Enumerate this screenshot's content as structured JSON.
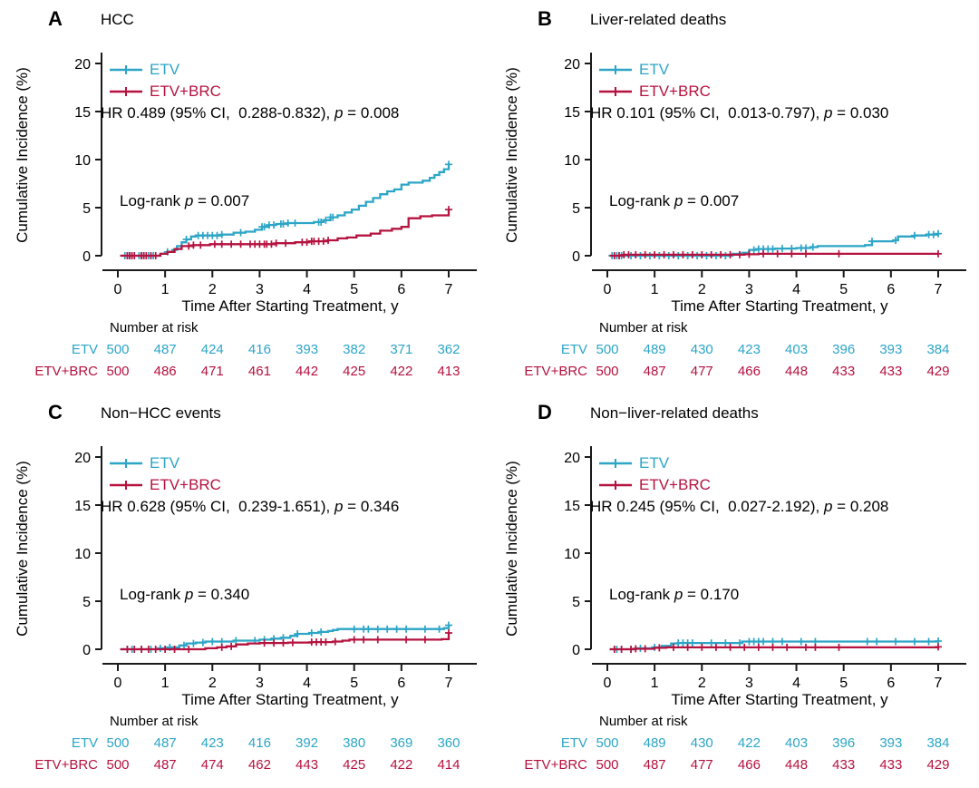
{
  "figure": {
    "x_label": "Time After Starting Treatment, y",
    "y_label": "Cumulative Incidence (%)",
    "risk_header": "Number at risk",
    "p_label": "p",
    "colors": {
      "etv": "#2CA5C6",
      "brc": "#B5123F",
      "axis": "#1A1A1A"
    }
  },
  "chart_data": [
    {
      "type": "line",
      "letter": "A",
      "title": "HCC",
      "hr_prefix": "HR 0.489 (95% CI,  0.288-0.832), ",
      "hr_suffix": " = 0.008",
      "logrank_prefix": "Log-rank ",
      "logrank_suffix": " = 0.007",
      "xlabel": "Time After Starting Treatment, y",
      "ylabel": "Cumulative Incidence (%)",
      "x_ticks": [
        0,
        1,
        2,
        3,
        4,
        5,
        6,
        7
      ],
      "y_ticks": [
        0,
        5,
        10,
        15,
        20
      ],
      "xlim": [
        0,
        7
      ],
      "ylim": [
        0,
        20
      ],
      "series": [
        {
          "name": "ETV",
          "color": "etv",
          "points": [
            [
              0.05,
              0
            ],
            [
              0.9,
              0.2
            ],
            [
              1.05,
              0.4
            ],
            [
              1.15,
              0.6
            ],
            [
              1.25,
              1.0
            ],
            [
              1.35,
              1.4
            ],
            [
              1.45,
              1.7
            ],
            [
              1.55,
              2.0
            ],
            [
              1.65,
              2.1
            ],
            [
              2.2,
              2.2
            ],
            [
              2.45,
              2.4
            ],
            [
              2.7,
              2.5
            ],
            [
              2.9,
              2.7
            ],
            [
              3.05,
              3.0
            ],
            [
              3.2,
              3.2
            ],
            [
              3.35,
              3.3
            ],
            [
              3.6,
              3.4
            ],
            [
              4.15,
              3.5
            ],
            [
              4.35,
              3.7
            ],
            [
              4.5,
              4.0
            ],
            [
              4.65,
              4.2
            ],
            [
              4.8,
              4.5
            ],
            [
              4.95,
              4.8
            ],
            [
              5.1,
              5.2
            ],
            [
              5.25,
              5.6
            ],
            [
              5.4,
              6.0
            ],
            [
              5.55,
              6.4
            ],
            [
              5.7,
              6.7
            ],
            [
              5.85,
              6.9
            ],
            [
              6.0,
              7.4
            ],
            [
              6.15,
              7.6
            ],
            [
              6.45,
              7.8
            ],
            [
              6.6,
              8.1
            ],
            [
              6.7,
              8.4
            ],
            [
              6.8,
              8.7
            ],
            [
              6.9,
              9.0
            ],
            [
              7.0,
              9.5
            ]
          ],
          "censors": [
            0.15,
            0.2,
            0.25,
            0.3,
            0.45,
            0.5,
            0.55,
            0.65,
            0.75,
            1.05,
            1.45,
            1.7,
            1.8,
            1.9,
            2.0,
            2.1,
            2.2,
            2.6,
            3.05,
            3.1,
            3.2,
            3.3,
            3.45,
            3.5,
            3.6,
            3.75,
            4.25,
            4.3,
            4.4,
            4.5,
            4.55,
            7.0
          ]
        },
        {
          "name": "ETV+BRC",
          "color": "brc",
          "points": [
            [
              0.05,
              0
            ],
            [
              0.9,
              0.2
            ],
            [
              1.05,
              0.4
            ],
            [
              1.2,
              0.7
            ],
            [
              1.35,
              1.0
            ],
            [
              1.6,
              1.1
            ],
            [
              1.95,
              1.2
            ],
            [
              3.35,
              1.3
            ],
            [
              3.75,
              1.4
            ],
            [
              4.05,
              1.5
            ],
            [
              4.45,
              1.6
            ],
            [
              4.65,
              1.8
            ],
            [
              4.85,
              1.9
            ],
            [
              5.05,
              2.1
            ],
            [
              5.35,
              2.3
            ],
            [
              5.55,
              2.6
            ],
            [
              5.8,
              2.8
            ],
            [
              6.0,
              3.0
            ],
            [
              6.15,
              3.9
            ],
            [
              6.4,
              4.1
            ],
            [
              6.65,
              4.2
            ],
            [
              7.0,
              4.8
            ]
          ],
          "censors": [
            0.2,
            0.25,
            0.3,
            0.35,
            0.5,
            0.55,
            0.6,
            0.7,
            0.8,
            1.5,
            1.6,
            1.75,
            2.05,
            2.2,
            2.4,
            2.6,
            2.8,
            2.9,
            3.0,
            3.1,
            3.15,
            3.25,
            3.35,
            3.55,
            3.9,
            4.0,
            4.1,
            4.15,
            4.25,
            4.35,
            4.45,
            7.0
          ]
        }
      ],
      "risk": [
        {
          "label": "ETV",
          "color": "etv",
          "values": [
            500,
            487,
            424,
            416,
            393,
            382,
            371,
            362
          ]
        },
        {
          "label": "ETV+BRC",
          "color": "brc",
          "values": [
            500,
            486,
            471,
            461,
            442,
            425,
            422,
            413
          ]
        }
      ]
    },
    {
      "type": "line",
      "letter": "B",
      "title": "Liver-related deaths",
      "hr_prefix": "HR 0.101 (95% CI,  0.013-0.797), ",
      "hr_suffix": " = 0.030",
      "logrank_prefix": "Log-rank ",
      "logrank_suffix": " = 0.007",
      "xlabel": "Time After Starting Treatment, y",
      "ylabel": "Cumulative Incidence (%)",
      "x_ticks": [
        0,
        1,
        2,
        3,
        4,
        5,
        6,
        7
      ],
      "y_ticks": [
        0,
        5,
        10,
        15,
        20
      ],
      "xlim": [
        0,
        7
      ],
      "ylim": [
        0,
        20
      ],
      "series": [
        {
          "name": "ETV",
          "color": "etv",
          "points": [
            [
              0.05,
              0
            ],
            [
              2.65,
              0.2
            ],
            [
              2.85,
              0.3
            ],
            [
              3.0,
              0.6
            ],
            [
              3.15,
              0.7
            ],
            [
              3.55,
              0.75
            ],
            [
              4.0,
              0.8
            ],
            [
              4.3,
              0.9
            ],
            [
              4.45,
              1.0
            ],
            [
              5.45,
              1.1
            ],
            [
              5.6,
              1.5
            ],
            [
              6.05,
              1.6
            ],
            [
              6.15,
              2.0
            ],
            [
              6.5,
              2.1
            ],
            [
              6.75,
              2.2
            ],
            [
              7.0,
              2.3
            ]
          ],
          "censors": [
            0.1,
            0.2,
            0.3,
            0.5,
            0.7,
            0.9,
            1.1,
            1.3,
            1.5,
            1.7,
            1.9,
            2.1,
            2.3,
            2.5,
            3.1,
            3.2,
            3.3,
            3.4,
            3.5,
            3.7,
            3.9,
            4.1,
            4.2,
            4.35,
            5.6,
            6.1,
            6.5,
            6.8,
            6.9,
            7.0
          ]
        },
        {
          "name": "ETV+BRC",
          "color": "brc",
          "points": [
            [
              0.05,
              0
            ],
            [
              0.35,
              0.1
            ],
            [
              2.9,
              0.15
            ],
            [
              3.2,
              0.2
            ],
            [
              7.0,
              0.2
            ]
          ],
          "censors": [
            0.15,
            0.25,
            0.35,
            0.45,
            0.6,
            0.8,
            1.0,
            1.2,
            1.4,
            1.6,
            1.8,
            2.0,
            2.2,
            2.4,
            2.6,
            2.8,
            3.0,
            3.3,
            3.6,
            3.9,
            4.2,
            4.9,
            7.0
          ]
        }
      ],
      "risk": [
        {
          "label": "ETV",
          "color": "etv",
          "values": [
            500,
            489,
            430,
            423,
            403,
            396,
            393,
            384
          ]
        },
        {
          "label": "ETV+BRC",
          "color": "brc",
          "values": [
            500,
            487,
            477,
            466,
            448,
            433,
            433,
            429
          ]
        }
      ]
    },
    {
      "type": "line",
      "letter": "C",
      "title": "Non−HCC events",
      "hr_prefix": "HR 0.628 (95% CI,  0.239-1.651), ",
      "hr_suffix": " = 0.346",
      "logrank_prefix": "Log-rank ",
      "logrank_suffix": " = 0.340",
      "xlabel": "Time After Starting Treatment, y",
      "ylabel": "Cumulative Incidence (%)",
      "x_ticks": [
        0,
        1,
        2,
        3,
        4,
        5,
        6,
        7
      ],
      "y_ticks": [
        0,
        5,
        10,
        15,
        20
      ],
      "xlim": [
        0,
        7
      ],
      "ylim": [
        0,
        20
      ],
      "series": [
        {
          "name": "ETV",
          "color": "etv",
          "points": [
            [
              0.05,
              0
            ],
            [
              0.85,
              0.1
            ],
            [
              1.05,
              0.2
            ],
            [
              1.3,
              0.4
            ],
            [
              1.45,
              0.6
            ],
            [
              1.65,
              0.7
            ],
            [
              1.85,
              0.8
            ],
            [
              2.45,
              0.9
            ],
            [
              3.0,
              1.0
            ],
            [
              3.25,
              1.1
            ],
            [
              3.45,
              1.2
            ],
            [
              3.65,
              1.4
            ],
            [
              3.8,
              1.6
            ],
            [
              4.05,
              1.7
            ],
            [
              4.25,
              1.8
            ],
            [
              4.45,
              1.9
            ],
            [
              4.55,
              2.0
            ],
            [
              4.65,
              2.1
            ],
            [
              6.9,
              2.2
            ],
            [
              7.0,
              2.5
            ]
          ],
          "censors": [
            0.2,
            0.3,
            0.5,
            0.7,
            0.9,
            1.1,
            1.4,
            1.6,
            1.8,
            2.0,
            2.2,
            2.5,
            2.9,
            3.1,
            3.3,
            3.5,
            3.8,
            4.1,
            4.3,
            5.0,
            5.2,
            5.3,
            5.5,
            5.7,
            5.9,
            6.1,
            6.5,
            6.8,
            7.0
          ]
        },
        {
          "name": "ETV+BRC",
          "color": "brc",
          "points": [
            [
              0.05,
              0
            ],
            [
              1.85,
              0.1
            ],
            [
              2.1,
              0.2
            ],
            [
              2.3,
              0.3
            ],
            [
              2.5,
              0.5
            ],
            [
              2.75,
              0.6
            ],
            [
              3.0,
              0.65
            ],
            [
              3.6,
              0.7
            ],
            [
              4.1,
              0.75
            ],
            [
              4.55,
              0.8
            ],
            [
              4.75,
              0.9
            ],
            [
              4.9,
              1.0
            ],
            [
              6.85,
              1.05
            ],
            [
              7.0,
              1.7
            ]
          ],
          "censors": [
            0.2,
            0.35,
            0.5,
            0.65,
            0.8,
            1.0,
            1.2,
            1.5,
            2.2,
            2.4,
            3.1,
            3.3,
            3.5,
            3.7,
            4.1,
            4.2,
            4.3,
            4.4,
            4.6,
            5.0,
            5.2,
            5.5,
            6.1,
            6.5,
            7.0
          ]
        }
      ],
      "risk": [
        {
          "label": "ETV",
          "color": "etv",
          "values": [
            500,
            487,
            423,
            416,
            392,
            380,
            369,
            360
          ]
        },
        {
          "label": "ETV+BRC",
          "color": "brc",
          "values": [
            500,
            487,
            474,
            462,
            443,
            425,
            422,
            414
          ]
        }
      ]
    },
    {
      "type": "line",
      "letter": "D",
      "title": "Non−liver-related deaths",
      "hr_prefix": "HR 0.245 (95% CI,  0.027-2.192), ",
      "hr_suffix": " = 0.208",
      "logrank_prefix": "Log-rank ",
      "logrank_suffix": " = 0.170",
      "xlabel": "Time After Starting Treatment, y",
      "ylabel": "Cumulative Incidence (%)",
      "x_ticks": [
        0,
        1,
        2,
        3,
        4,
        5,
        6,
        7
      ],
      "y_ticks": [
        0,
        5,
        10,
        15,
        20
      ],
      "xlim": [
        0,
        7
      ],
      "ylim": [
        0,
        20
      ],
      "series": [
        {
          "name": "ETV",
          "color": "etv",
          "points": [
            [
              0.05,
              0
            ],
            [
              0.6,
              0.1
            ],
            [
              0.95,
              0.2
            ],
            [
              1.15,
              0.35
            ],
            [
              1.35,
              0.6
            ],
            [
              1.5,
              0.65
            ],
            [
              2.85,
              0.8
            ],
            [
              7.0,
              0.85
            ]
          ],
          "censors": [
            0.2,
            0.3,
            0.5,
            0.7,
            1.0,
            1.5,
            1.6,
            1.7,
            1.8,
            2.2,
            2.5,
            2.8,
            3.0,
            3.1,
            3.2,
            3.3,
            3.5,
            3.7,
            4.1,
            4.4,
            5.5,
            5.7,
            6.1,
            6.5,
            6.8,
            7.0
          ]
        },
        {
          "name": "ETV+BRC",
          "color": "brc",
          "points": [
            [
              0.05,
              0
            ],
            [
              0.55,
              0.05
            ],
            [
              1.0,
              0.15
            ],
            [
              1.25,
              0.2
            ],
            [
              7.0,
              0.25
            ]
          ],
          "censors": [
            0.15,
            0.3,
            0.5,
            0.6,
            0.8,
            1.1,
            1.4,
            1.7,
            2.0,
            2.3,
            2.6,
            2.9,
            3.2,
            3.5,
            3.8,
            4.2,
            4.4,
            4.9,
            7.0
          ]
        }
      ],
      "risk": [
        {
          "label": "ETV",
          "color": "etv",
          "values": [
            500,
            489,
            430,
            422,
            403,
            396,
            393,
            384
          ]
        },
        {
          "label": "ETV+BRC",
          "color": "brc",
          "values": [
            500,
            487,
            477,
            466,
            448,
            433,
            433,
            429
          ]
        }
      ]
    }
  ]
}
